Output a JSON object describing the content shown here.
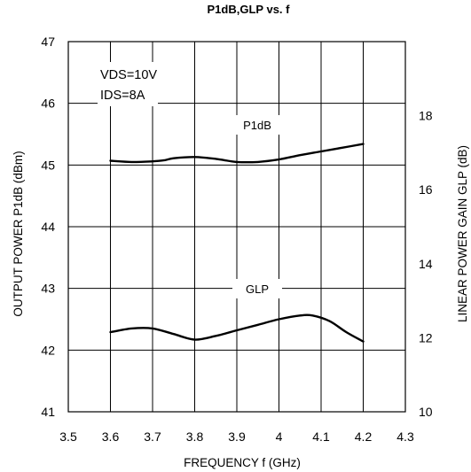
{
  "chart_data": {
    "type": "line",
    "title": "P1dB,GLP vs. f",
    "xlabel": "FREQUENCY f (GHz)",
    "ylabel": "OUTPUT POWER P1dB (dBm)",
    "y2label": "LINEAR POWER GAIN GLP (dB)",
    "xlim": [
      3.5,
      4.3
    ],
    "ylim": [
      41,
      47
    ],
    "y2lim": [
      10,
      20
    ],
    "x_ticks": [
      "3.5",
      "3.6",
      "3.7",
      "3.8",
      "3.9",
      "4",
      "4.1",
      "4.2",
      "4.3"
    ],
    "y_ticks": [
      "41",
      "42",
      "43",
      "44",
      "45",
      "46",
      "47"
    ],
    "y2_ticks": [
      "10",
      "12",
      "14",
      "16",
      "18"
    ],
    "grid": true,
    "annotations": [
      "VDS=10V",
      "IDS=8A"
    ],
    "series": [
      {
        "name": "P1dB",
        "axis": "left",
        "x": [
          3.6,
          3.65,
          3.7,
          3.73,
          3.75,
          3.8,
          3.85,
          3.9,
          3.95,
          4.0,
          4.05,
          4.1,
          4.15,
          4.2
        ],
        "values": [
          45.07,
          45.05,
          45.06,
          45.08,
          45.11,
          45.13,
          45.1,
          45.05,
          45.05,
          45.09,
          45.16,
          45.22,
          45.28,
          45.34
        ]
      },
      {
        "name": "GLP",
        "axis": "right",
        "x": [
          3.6,
          3.65,
          3.7,
          3.75,
          3.8,
          3.85,
          3.9,
          3.95,
          4.0,
          4.05,
          4.08,
          4.12,
          4.16,
          4.2
        ],
        "values": [
          12.15,
          12.25,
          12.25,
          12.1,
          11.95,
          12.05,
          12.2,
          12.35,
          12.5,
          12.6,
          12.6,
          12.45,
          12.15,
          11.9
        ]
      }
    ]
  }
}
